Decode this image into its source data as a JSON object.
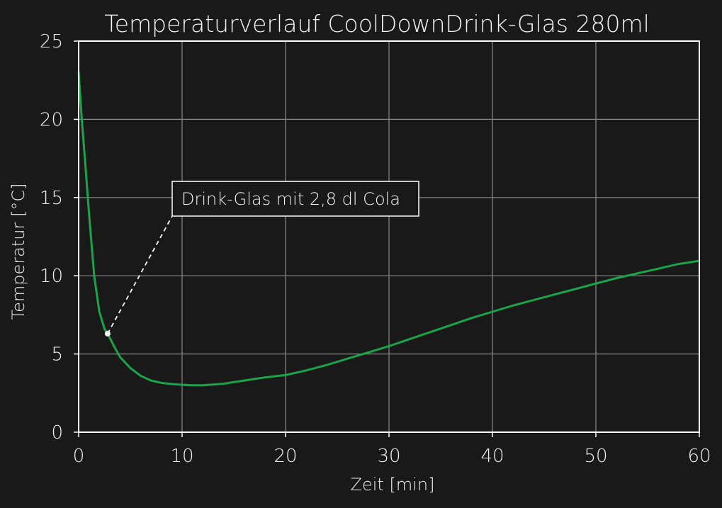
{
  "chart_data": {
    "type": "line",
    "title": "Temperaturverlauf CoolDownDrink-Glas 280ml",
    "xlabel": "Zeit [min]",
    "ylabel": "Temperatur [°C]",
    "xlim": [
      0,
      60
    ],
    "ylim": [
      0,
      25
    ],
    "xticks": [
      0,
      10,
      20,
      30,
      40,
      50,
      60
    ],
    "yticks": [
      0,
      5,
      10,
      15,
      20,
      25
    ],
    "xtick_labels": [
      "0",
      "10",
      "20",
      "30",
      "40",
      "50",
      "60"
    ],
    "ytick_labels": [
      "0",
      "5",
      "10",
      "15",
      "20",
      "25"
    ],
    "grid": true,
    "series": [
      {
        "color": "#1aa34a",
        "x": [
          0,
          0.3,
          0.6,
          1.0,
          1.5,
          2.0,
          2.5,
          2.8,
          3.5,
          4.0,
          5.0,
          6.0,
          7.0,
          8.0,
          9.0,
          10.0,
          11.0,
          12.0,
          13.0,
          14.0,
          15.0,
          16.0,
          17.0,
          18.0,
          19.0,
          20.0,
          22.0,
          24.0,
          26.0,
          28.0,
          30.0,
          32.0,
          34.0,
          36.0,
          38.0,
          40.0,
          42.0,
          44.0,
          46.0,
          48.0,
          50.0,
          52.0,
          54.0,
          56.0,
          58.0,
          60.0
        ],
        "y": [
          23.0,
          20.0,
          17.5,
          14.0,
          10.0,
          7.7,
          6.6,
          6.3,
          5.4,
          4.8,
          4.1,
          3.6,
          3.3,
          3.15,
          3.08,
          3.03,
          3.0,
          3.0,
          3.05,
          3.1,
          3.2,
          3.3,
          3.4,
          3.5,
          3.58,
          3.65,
          3.95,
          4.3,
          4.7,
          5.1,
          5.5,
          5.95,
          6.4,
          6.85,
          7.3,
          7.7,
          8.1,
          8.45,
          8.8,
          9.15,
          9.5,
          9.85,
          10.15,
          10.45,
          10.75,
          10.95
        ]
      }
    ],
    "annotation": {
      "text": "Drink-Glas mit 2,8 dl Cola",
      "point_x": 2.8,
      "point_y": 6.3
    }
  }
}
